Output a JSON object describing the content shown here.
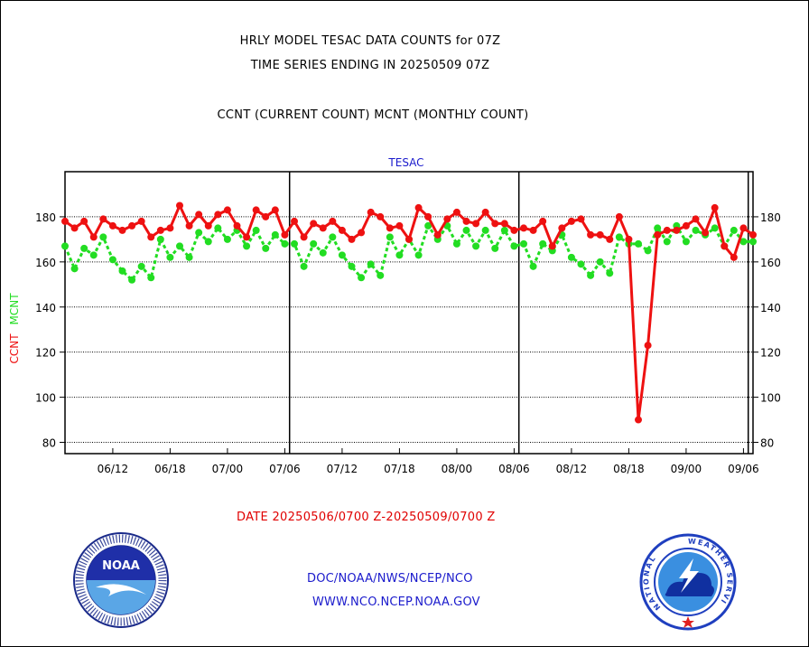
{
  "header": {
    "line1": "HRLY MODEL TESAC DATA COUNTS for 07Z",
    "line2": "TIME SERIES ENDING IN 20250509 07Z",
    "line3": "CCNT (CURRENT COUNT) MCNT (MONTHLY COUNT)"
  },
  "chart_data": {
    "type": "line",
    "title": "TESAC",
    "ylabel_ccnt": "CCNT",
    "ylabel_mcnt": "MCNT",
    "xlabel": "DATE 20250506/0700 Z-20250509/0700 Z",
    "ylim": [
      75,
      200
    ],
    "yticks": [
      80,
      100,
      120,
      140,
      160,
      180
    ],
    "xticks": [
      {
        "pos": 5,
        "label": "06/12"
      },
      {
        "pos": 11,
        "label": "06/18"
      },
      {
        "pos": 17,
        "label": "07/00"
      },
      {
        "pos": 23,
        "label": "07/06"
      },
      {
        "pos": 29,
        "label": "07/12"
      },
      {
        "pos": 35,
        "label": "07/18"
      },
      {
        "pos": 41,
        "label": "08/00"
      },
      {
        "pos": 47,
        "label": "08/06"
      },
      {
        "pos": 53,
        "label": "08/12"
      },
      {
        "pos": 59,
        "label": "08/18"
      },
      {
        "pos": 65,
        "label": "09/00"
      },
      {
        "pos": 71,
        "label": "09/06"
      }
    ],
    "day_dividers": [
      23.5,
      47.5,
      71.5
    ],
    "grid": true,
    "series": [
      {
        "name": "CCNT",
        "color": "#ee1111",
        "style": "solid",
        "values": [
          178,
          175,
          178,
          171,
          179,
          176,
          174,
          176,
          178,
          171,
          174,
          175,
          185,
          176,
          181,
          176,
          181,
          183,
          176,
          171,
          183,
          180,
          183,
          172,
          178,
          171,
          177,
          175,
          178,
          174,
          170,
          173,
          182,
          180,
          175,
          176,
          170,
          184,
          180,
          172,
          179,
          182,
          178,
          177,
          182,
          177,
          177,
          174,
          175,
          174,
          178,
          167,
          175,
          178,
          179,
          172,
          172,
          170,
          180,
          170,
          90,
          123,
          172,
          174,
          174,
          176,
          179,
          173,
          184,
          167,
          162,
          175,
          172
        ]
      },
      {
        "name": "MCNT",
        "color": "#22dd22",
        "style": "dashed",
        "values": [
          167,
          157,
          166,
          163,
          171,
          161,
          156,
          152,
          158,
          153,
          170,
          162,
          167,
          162,
          173,
          169,
          175,
          170,
          174,
          167,
          174,
          166,
          172,
          168,
          168,
          158,
          168,
          164,
          171,
          163,
          158,
          153,
          159,
          154,
          171,
          163,
          170,
          163,
          176,
          170,
          176,
          168,
          174,
          167,
          174,
          166,
          174,
          167,
          168,
          158,
          168,
          165,
          172,
          162,
          159,
          154,
          160,
          155,
          171,
          168,
          168,
          165,
          175,
          169,
          176,
          169,
          174,
          172,
          175,
          167,
          174,
          169,
          169
        ]
      }
    ]
  },
  "footer": {
    "link1": "DOC/NOAA/NWS/NCEP/NCO",
    "link2": "WWW.NCO.NCEP.NOAA.GOV"
  },
  "logos": {
    "noaa_text": "NOAA",
    "nws_left_ring": "NATIONAL",
    "nws_right_ring": "WEATHER SERVICE"
  }
}
